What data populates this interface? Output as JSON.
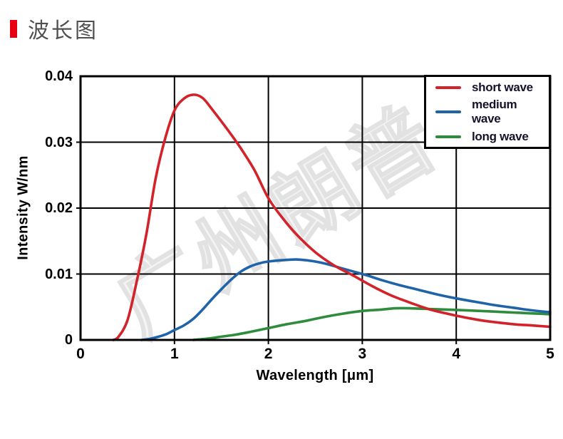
{
  "header": {
    "title": "波长图",
    "marker_color": "#e60012"
  },
  "watermark": {
    "text": "广州朗普"
  },
  "chart_data": {
    "type": "line",
    "title": "",
    "xlabel": "Wavelength [μm]",
    "ylabel": "Intensity W/nm",
    "xlim": [
      0,
      5
    ],
    "ylim": [
      0,
      0.04
    ],
    "grid": true,
    "legend_position": "top-right",
    "axis_color": "#000000",
    "grid_color": "#000000",
    "x_ticks": {
      "values": [
        0,
        1,
        2,
        3,
        4,
        5
      ],
      "labels": [
        "0",
        "1",
        "2",
        "3",
        "4",
        "5"
      ]
    },
    "y_ticks": {
      "values": [
        0,
        0.01,
        0.02,
        0.03,
        0.04
      ],
      "labels": [
        "0",
        "0.01",
        "0.02",
        "0.03",
        "0.04"
      ]
    },
    "series": [
      {
        "name": "short wave",
        "color": "#d2232a",
        "points": [
          [
            0.35,
            0
          ],
          [
            0.4,
            0.0004
          ],
          [
            0.5,
            0.003
          ],
          [
            0.6,
            0.009
          ],
          [
            0.7,
            0.016
          ],
          [
            0.8,
            0.0245
          ],
          [
            0.9,
            0.0305
          ],
          [
            1.0,
            0.0348
          ],
          [
            1.1,
            0.0366
          ],
          [
            1.2,
            0.0372
          ],
          [
            1.3,
            0.0367
          ],
          [
            1.4,
            0.035
          ],
          [
            1.55,
            0.0322
          ],
          [
            1.7,
            0.0292
          ],
          [
            1.85,
            0.0258
          ],
          [
            2.0,
            0.0215
          ],
          [
            2.15,
            0.0185
          ],
          [
            2.3,
            0.016
          ],
          [
            2.5,
            0.0133
          ],
          [
            2.7,
            0.0113
          ],
          [
            2.9,
            0.0098
          ],
          [
            3.1,
            0.0082
          ],
          [
            3.3,
            0.0068
          ],
          [
            3.5,
            0.0057
          ],
          [
            3.7,
            0.0047
          ],
          [
            3.9,
            0.004
          ],
          [
            4.1,
            0.0034
          ],
          [
            4.3,
            0.0029
          ],
          [
            4.6,
            0.0024
          ],
          [
            4.8,
            0.0022
          ],
          [
            5.0,
            0.002
          ]
        ]
      },
      {
        "name": "medium wave",
        "color": "#1f63a8",
        "points": [
          [
            0.65,
            0
          ],
          [
            0.75,
            0.0002
          ],
          [
            0.9,
            0.0008
          ],
          [
            1.0,
            0.0015
          ],
          [
            1.1,
            0.0022
          ],
          [
            1.2,
            0.0032
          ],
          [
            1.3,
            0.0046
          ],
          [
            1.4,
            0.0062
          ],
          [
            1.5,
            0.0077
          ],
          [
            1.6,
            0.0091
          ],
          [
            1.7,
            0.0103
          ],
          [
            1.8,
            0.0111
          ],
          [
            1.9,
            0.0116
          ],
          [
            2.0,
            0.0119
          ],
          [
            2.15,
            0.0121
          ],
          [
            2.3,
            0.0122
          ],
          [
            2.45,
            0.012
          ],
          [
            2.6,
            0.0116
          ],
          [
            2.75,
            0.011
          ],
          [
            2.9,
            0.0104
          ],
          [
            3.05,
            0.0098
          ],
          [
            3.2,
            0.0091
          ],
          [
            3.4,
            0.0083
          ],
          [
            3.6,
            0.0076
          ],
          [
            3.8,
            0.0069
          ],
          [
            4.0,
            0.0063
          ],
          [
            4.2,
            0.0058
          ],
          [
            4.4,
            0.0053
          ],
          [
            4.6,
            0.0049
          ],
          [
            4.8,
            0.0045
          ],
          [
            5.0,
            0.0042
          ]
        ]
      },
      {
        "name": "long wave",
        "color": "#2f8c3c",
        "points": [
          [
            1.2,
            0
          ],
          [
            1.35,
            0.0002
          ],
          [
            1.5,
            0.0005
          ],
          [
            1.65,
            0.0008
          ],
          [
            1.8,
            0.0012
          ],
          [
            2.0,
            0.0018
          ],
          [
            2.2,
            0.0024
          ],
          [
            2.4,
            0.0029
          ],
          [
            2.6,
            0.0035
          ],
          [
            2.8,
            0.004
          ],
          [
            3.0,
            0.0044
          ],
          [
            3.2,
            0.0046
          ],
          [
            3.35,
            0.0048
          ],
          [
            3.5,
            0.0048
          ],
          [
            3.7,
            0.0047
          ],
          [
            3.9,
            0.0046
          ],
          [
            4.1,
            0.0045
          ],
          [
            4.4,
            0.0043
          ],
          [
            4.7,
            0.0041
          ],
          [
            5.0,
            0.0039
          ]
        ]
      }
    ]
  }
}
